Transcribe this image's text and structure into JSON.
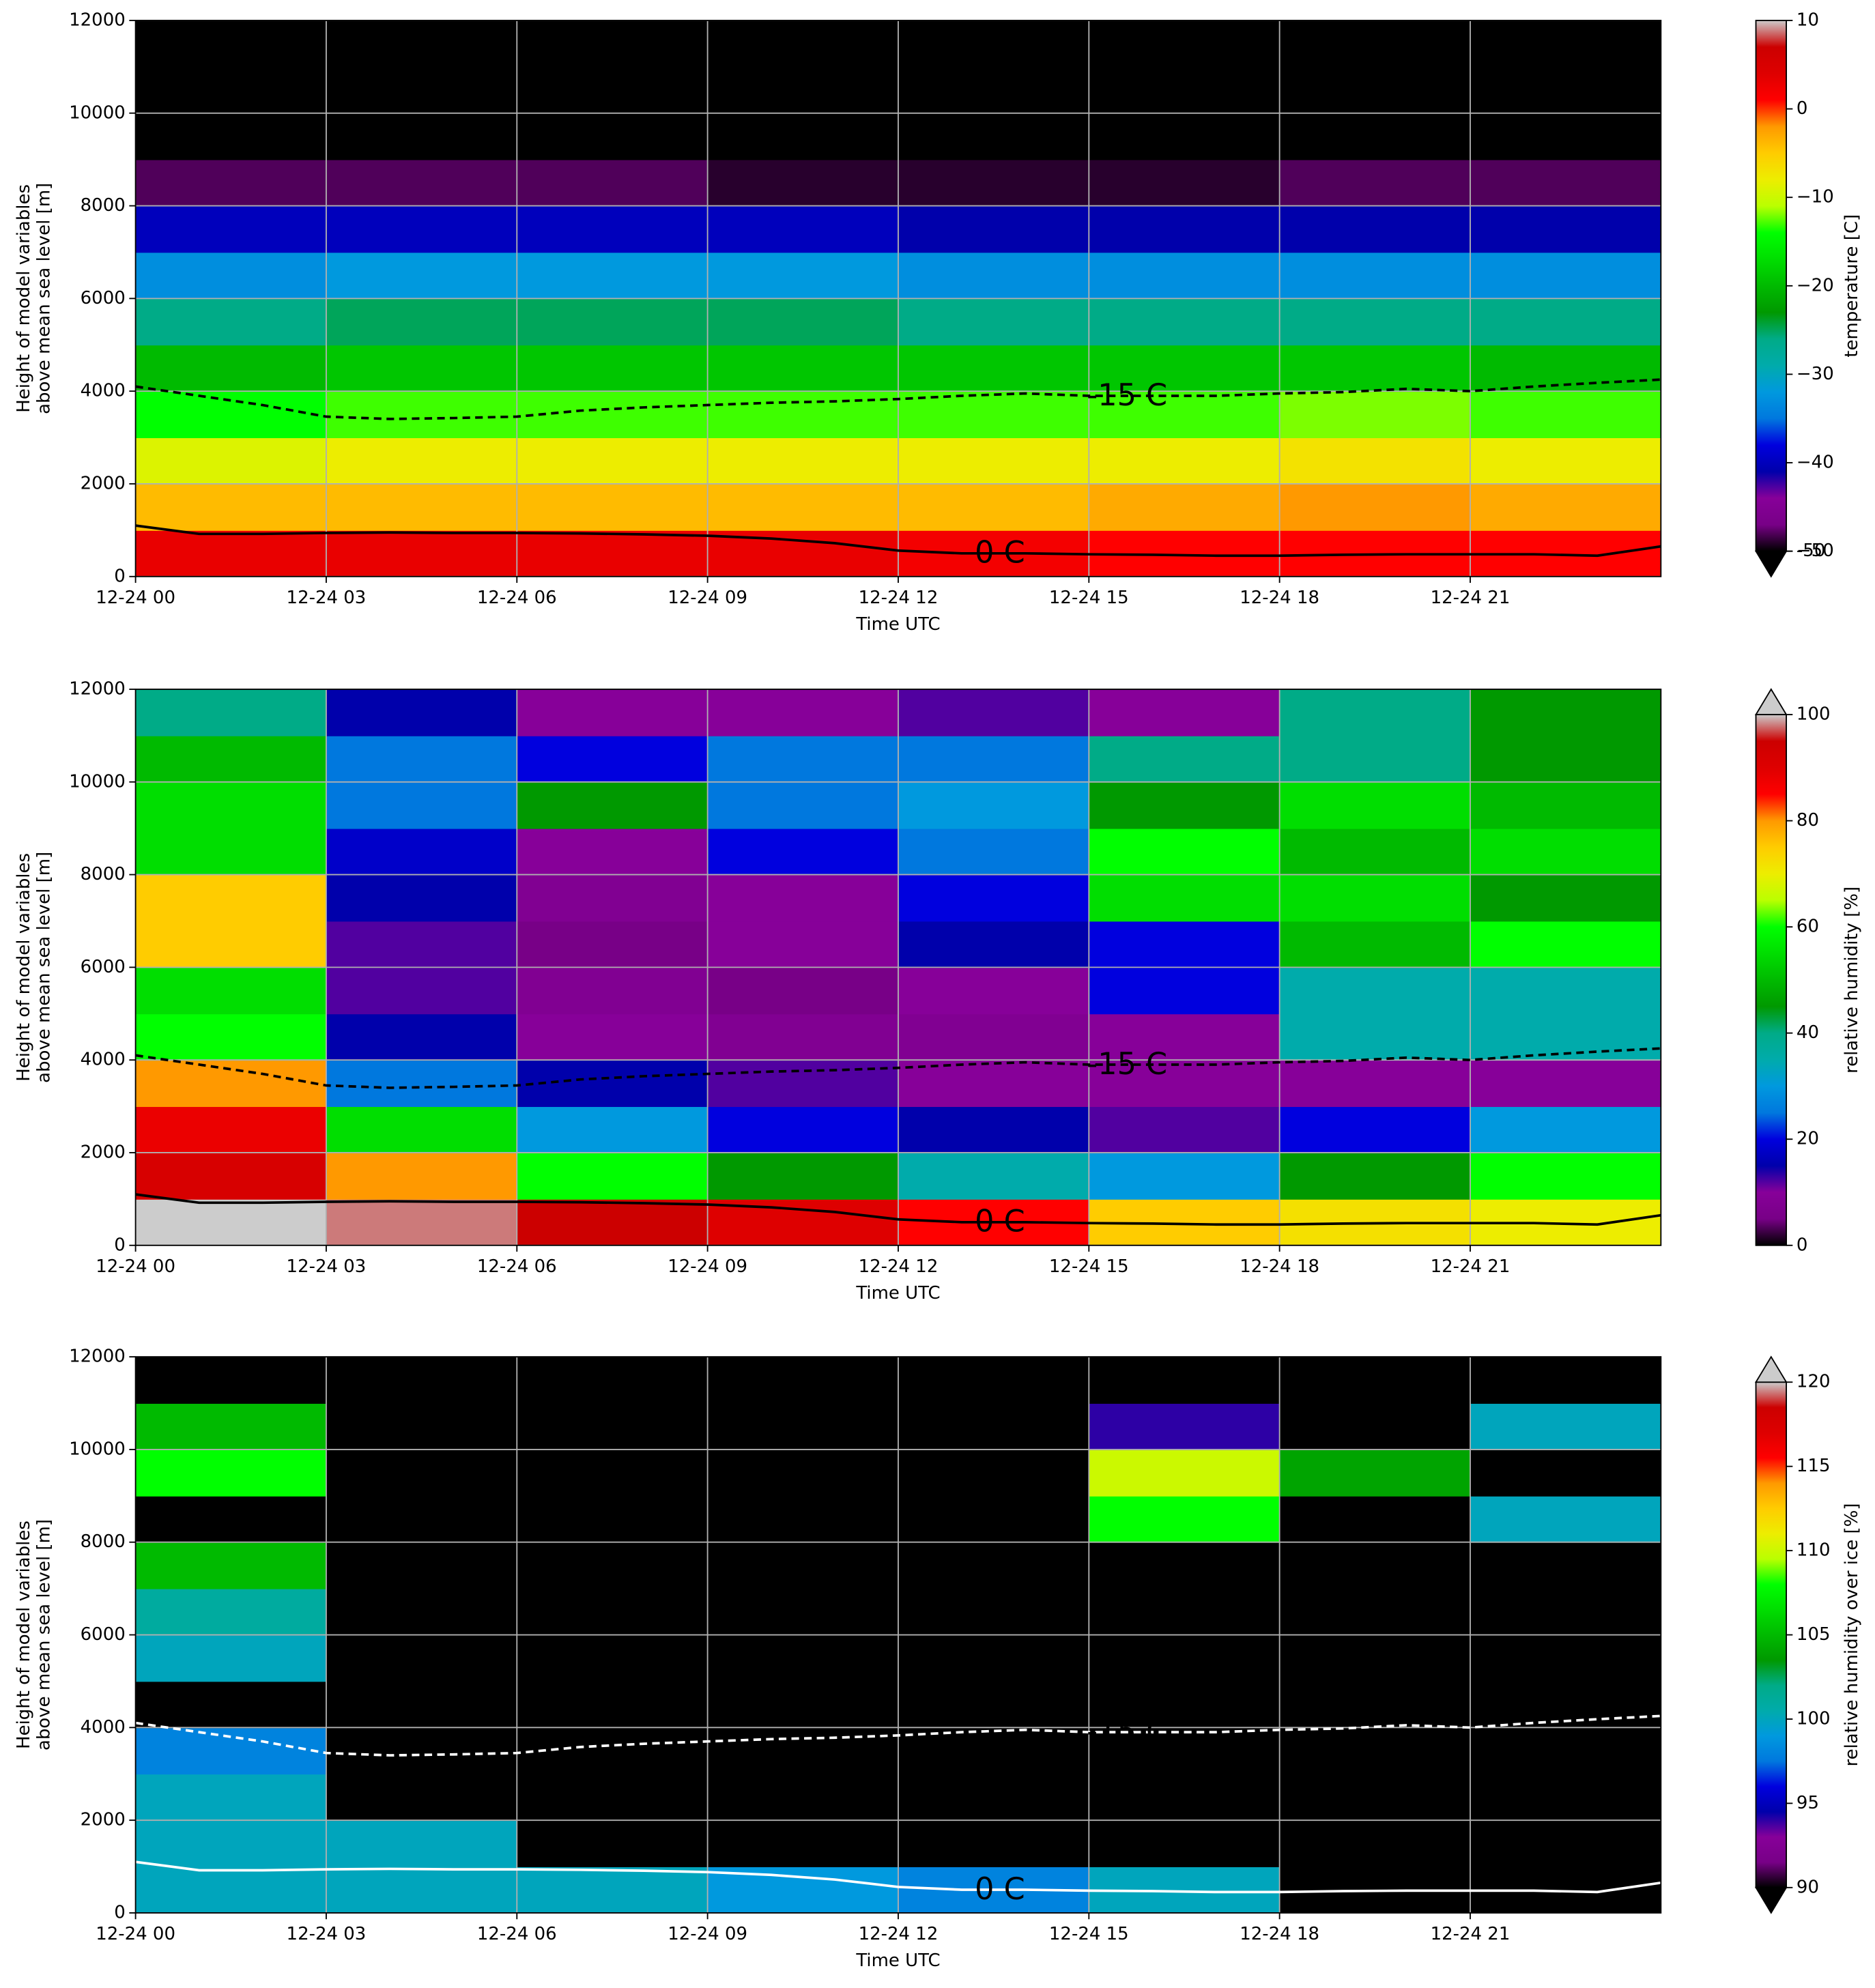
{
  "chart_data": [
    {
      "type": "heatmap",
      "colormap": "nipy_spectral",
      "xlabel": "Time UTC",
      "ylabel": [
        "Height of model variables",
        "above mean sea level [m]"
      ],
      "xlim": [
        0,
        24
      ],
      "ylim": [
        0,
        12000
      ],
      "xticks": [
        {
          "value": 0,
          "label": "12-24 00"
        },
        {
          "value": 3,
          "label": "12-24 03"
        },
        {
          "value": 6,
          "label": "12-24 06"
        },
        {
          "value": 9,
          "label": "12-24 09"
        },
        {
          "value": 12,
          "label": "12-24 12"
        },
        {
          "value": 15,
          "label": "12-24 15"
        },
        {
          "value": 18,
          "label": "12-24 18"
        },
        {
          "value": 21,
          "label": "12-24 21"
        }
      ],
      "yticks": [
        0,
        2000,
        4000,
        6000,
        8000,
        10000,
        12000
      ],
      "grid": true,
      "x": [
        1.5,
        4.5,
        7.5,
        10.5,
        13.5,
        16.5,
        19.5,
        22.5
      ],
      "y": [
        500,
        1500,
        2500,
        3500,
        4500,
        5500,
        6500,
        7500,
        8500,
        9500,
        10500,
        11500
      ],
      "z": [
        [
          3,
          3,
          3,
          3,
          2,
          1,
          1,
          1
        ],
        [
          -4,
          -4,
          -4,
          -4,
          -4,
          -3,
          -2,
          -3
        ],
        [
          -9,
          -8,
          -8,
          -8,
          -8,
          -8,
          -7,
          -8
        ],
        [
          -14,
          -13,
          -13,
          -13,
          -13,
          -13,
          -12,
          -13
        ],
        [
          -20,
          -19,
          -19,
          -19,
          -19,
          -19,
          -19,
          -20
        ],
        [
          -26,
          -25,
          -25,
          -25,
          -26,
          -26,
          -26,
          -26
        ],
        [
          -33,
          -32,
          -32,
          -32,
          -33,
          -33,
          -33,
          -33
        ],
        [
          -40,
          -40,
          -40,
          -40,
          -41,
          -41,
          -41,
          -41
        ],
        [
          -48,
          -48,
          -48,
          -49,
          -49,
          -49,
          -48,
          -48
        ],
        [
          -55,
          -55,
          -55,
          -55,
          -55,
          -55,
          -55,
          -55
        ],
        [
          -57,
          -57,
          -57,
          -57,
          -57,
          -57,
          -57,
          -57
        ],
        [
          -58,
          -58,
          -58,
          -58,
          -58,
          -58,
          -58,
          -58
        ]
      ],
      "clim": [
        -50,
        10
      ],
      "extend": "min",
      "colorbar_label": "temperature [C]",
      "cticks": [
        -50,
        {
          "value": -50,
          "label": "−50"
        },
        {
          "value": -40,
          "label": "−40"
        },
        {
          "value": -30,
          "label": "−30"
        },
        {
          "value": -20,
          "label": "−20"
        },
        {
          "value": -10,
          "label": "−10"
        },
        0,
        10
      ],
      "contour_color": "#000000",
      "contours": [
        {
          "label": "-15 C",
          "style": "dashed",
          "x": [
            0,
            1,
            2,
            3,
            4,
            5,
            6,
            7,
            8,
            9,
            10,
            11,
            12,
            13,
            14,
            15,
            16,
            17,
            18,
            19,
            20,
            21,
            22,
            23,
            24
          ],
          "values": [
            4100,
            3900,
            3700,
            3450,
            3400,
            3420,
            3450,
            3580,
            3650,
            3700,
            3750,
            3780,
            3830,
            3900,
            3950,
            3900,
            3900,
            3900,
            3950,
            3980,
            4050,
            4000,
            4100,
            4180,
            4250
          ]
        },
        {
          "label": "0 C",
          "style": "solid",
          "x": [
            0,
            1,
            2,
            3,
            4,
            5,
            6,
            7,
            8,
            9,
            10,
            11,
            12,
            13,
            14,
            15,
            16,
            17,
            18,
            19,
            20,
            21,
            22,
            23,
            24
          ],
          "values": [
            1100,
            920,
            920,
            940,
            950,
            940,
            940,
            930,
            910,
            880,
            820,
            720,
            560,
            500,
            500,
            480,
            470,
            450,
            450,
            470,
            480,
            480,
            480,
            450,
            650
          ]
        }
      ]
    },
    {
      "type": "heatmap",
      "colormap": "nipy_spectral",
      "xlabel": "Time UTC",
      "ylabel": [
        "Height of model variables",
        "above mean sea level [m]"
      ],
      "xlim": [
        0,
        24
      ],
      "ylim": [
        0,
        12000
      ],
      "xticks": [
        {
          "value": 0,
          "label": "12-24 00"
        },
        {
          "value": 3,
          "label": "12-24 03"
        },
        {
          "value": 6,
          "label": "12-24 06"
        },
        {
          "value": 9,
          "label": "12-24 09"
        },
        {
          "value": 12,
          "label": "12-24 12"
        },
        {
          "value": 15,
          "label": "12-24 15"
        },
        {
          "value": 18,
          "label": "12-24 18"
        },
        {
          "value": 21,
          "label": "12-24 21"
        }
      ],
      "yticks": [
        0,
        2000,
        4000,
        6000,
        8000,
        10000,
        12000
      ],
      "grid": true,
      "x": [
        1.5,
        4.5,
        7.5,
        10.5,
        13.5,
        16.5,
        19.5,
        22.5
      ],
      "y": [
        500,
        1500,
        2500,
        3500,
        4500,
        5500,
        6500,
        7500,
        8500,
        9500,
        10500,
        11500
      ],
      "z": [
        [
          100,
          98,
          95,
          90,
          85,
          75,
          72,
          70
        ],
        [
          92,
          80,
          60,
          45,
          35,
          30,
          45,
          60
        ],
        [
          88,
          55,
          30,
          20,
          15,
          12,
          20,
          30
        ],
        [
          80,
          25,
          15,
          12,
          10,
          10,
          10,
          10
        ],
        [
          60,
          15,
          10,
          8,
          8,
          10,
          35,
          35
        ],
        [
          55,
          12,
          8,
          5,
          10,
          20,
          35,
          35
        ],
        [
          75,
          12,
          5,
          10,
          15,
          20,
          50,
          60
        ],
        [
          75,
          15,
          8,
          10,
          20,
          55,
          55,
          45
        ],
        [
          55,
          18,
          10,
          20,
          25,
          60,
          50,
          55
        ],
        [
          55,
          25,
          45,
          25,
          30,
          45,
          55,
          50
        ],
        [
          50,
          25,
          20,
          25,
          25,
          40,
          40,
          45
        ],
        [
          40,
          15,
          10,
          10,
          12,
          10,
          40,
          45
        ]
      ],
      "clim": [
        0,
        100
      ],
      "extend": "max",
      "colorbar_label": "relative humidity [%]",
      "cticks": [
        0,
        20,
        40,
        60,
        80,
        100
      ],
      "contour_color": "#000000",
      "contours": [
        {
          "label": "-15 C",
          "style": "dashed",
          "x": [
            0,
            1,
            2,
            3,
            4,
            5,
            6,
            7,
            8,
            9,
            10,
            11,
            12,
            13,
            14,
            15,
            16,
            17,
            18,
            19,
            20,
            21,
            22,
            23,
            24
          ],
          "values": [
            4100,
            3900,
            3700,
            3450,
            3400,
            3420,
            3450,
            3580,
            3650,
            3700,
            3750,
            3780,
            3830,
            3900,
            3950,
            3900,
            3900,
            3900,
            3950,
            3980,
            4050,
            4000,
            4100,
            4180,
            4250
          ]
        },
        {
          "label": "0 C",
          "style": "solid",
          "x": [
            0,
            1,
            2,
            3,
            4,
            5,
            6,
            7,
            8,
            9,
            10,
            11,
            12,
            13,
            14,
            15,
            16,
            17,
            18,
            19,
            20,
            21,
            22,
            23,
            24
          ],
          "values": [
            1100,
            920,
            920,
            940,
            950,
            940,
            940,
            930,
            910,
            880,
            820,
            720,
            560,
            500,
            500,
            480,
            470,
            450,
            450,
            470,
            480,
            480,
            480,
            450,
            650
          ]
        }
      ]
    },
    {
      "type": "heatmap",
      "colormap": "nipy_spectral",
      "xlabel": "Time UTC",
      "ylabel": [
        "Height of model variables",
        "above mean sea level [m]"
      ],
      "xlim": [
        0,
        24
      ],
      "ylim": [
        0,
        12000
      ],
      "xticks": [
        {
          "value": 0,
          "label": "12-24 00"
        },
        {
          "value": 3,
          "label": "12-24 03"
        },
        {
          "value": 6,
          "label": "12-24 06"
        },
        {
          "value": 9,
          "label": "12-24 09"
        },
        {
          "value": 12,
          "label": "12-24 12"
        },
        {
          "value": 15,
          "label": "12-24 15"
        },
        {
          "value": 18,
          "label": "12-24 18"
        },
        {
          "value": 21,
          "label": "12-24 21"
        }
      ],
      "yticks": [
        0,
        2000,
        4000,
        6000,
        8000,
        10000,
        12000
      ],
      "grid": true,
      "x": [
        1.5,
        4.5,
        7.5,
        10.5,
        13.5,
        16.5,
        19.5,
        22.5
      ],
      "y": [
        500,
        1500,
        2500,
        3500,
        4500,
        5500,
        6500,
        7500,
        8500,
        9500,
        10500,
        11500
      ],
      "z": [
        [
          100,
          100,
          100,
          99,
          98,
          100,
          80,
          80
        ],
        [
          100,
          100,
          80,
          80,
          80,
          80,
          80,
          80
        ],
        [
          100,
          80,
          80,
          80,
          80,
          80,
          80,
          80
        ],
        [
          98,
          80,
          80,
          80,
          80,
          80,
          80,
          80
        ],
        [
          80,
          80,
          80,
          80,
          80,
          80,
          80,
          80
        ],
        [
          100,
          80,
          80,
          80,
          80,
          80,
          80,
          80
        ],
        [
          101,
          80,
          80,
          80,
          80,
          80,
          80,
          80
        ],
        [
          105,
          80,
          80,
          80,
          80,
          80,
          80,
          80
        ],
        [
          80,
          80,
          80,
          80,
          80,
          108,
          80,
          100
        ],
        [
          108,
          80,
          80,
          80,
          80,
          110,
          104,
          80
        ],
        [
          105,
          80,
          80,
          80,
          80,
          94,
          80,
          100
        ],
        [
          80,
          80,
          80,
          80,
          80,
          80,
          80,
          80
        ]
      ],
      "clim": [
        90,
        120
      ],
      "extend": "both",
      "colorbar_label": "relative humidity over ice [%]",
      "cticks": [
        90,
        95,
        100,
        105,
        110,
        115,
        120
      ],
      "contour_color": "#ffffff",
      "contours": [
        {
          "label": "-15 C",
          "style": "dashed",
          "x": [
            0,
            1,
            2,
            3,
            4,
            5,
            6,
            7,
            8,
            9,
            10,
            11,
            12,
            13,
            14,
            15,
            16,
            17,
            18,
            19,
            20,
            21,
            22,
            23,
            24
          ],
          "values": [
            4100,
            3900,
            3700,
            3450,
            3400,
            3420,
            3450,
            3580,
            3650,
            3700,
            3750,
            3780,
            3830,
            3900,
            3950,
            3900,
            3900,
            3900,
            3950,
            3980,
            4050,
            4000,
            4100,
            4180,
            4250
          ]
        },
        {
          "label": "0 C",
          "style": "solid",
          "x": [
            0,
            1,
            2,
            3,
            4,
            5,
            6,
            7,
            8,
            9,
            10,
            11,
            12,
            13,
            14,
            15,
            16,
            17,
            18,
            19,
            20,
            21,
            22,
            23,
            24
          ],
          "values": [
            1100,
            920,
            920,
            940,
            950,
            940,
            940,
            930,
            910,
            880,
            820,
            720,
            560,
            500,
            500,
            480,
            470,
            450,
            450,
            470,
            480,
            480,
            480,
            450,
            650
          ]
        }
      ]
    }
  ]
}
